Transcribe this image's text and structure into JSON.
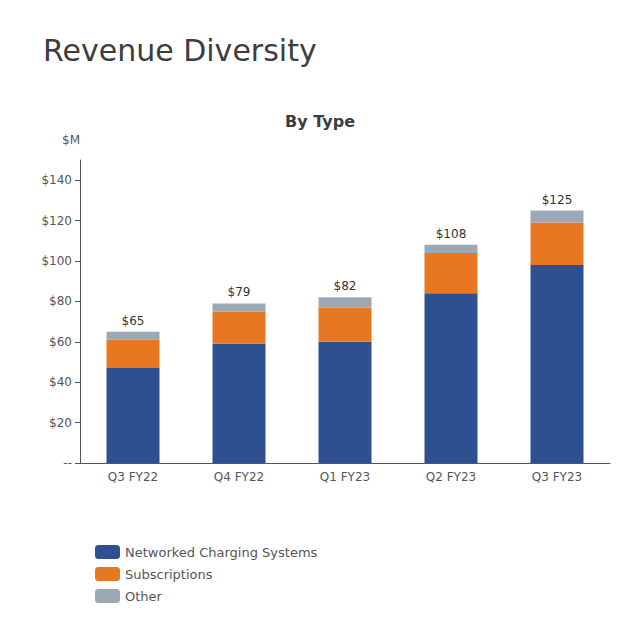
{
  "chart_data": {
    "type": "bar",
    "title": "Revenue Diversity",
    "subtitle": "By Type",
    "y_label": "$M",
    "categories": [
      "Q3 FY22",
      "Q4 FY22",
      "Q1 FY23",
      "Q2 FY23",
      "Q3 FY23"
    ],
    "series": [
      {
        "name": "Networked Charging Systems",
        "color": "#2E5090",
        "values": [
          47,
          59,
          60,
          84,
          98
        ]
      },
      {
        "name": "Subscriptions",
        "color": "#E87722",
        "values": [
          14,
          16,
          17,
          20,
          21
        ]
      },
      {
        "name": "Other",
        "color": "#9BA8B5",
        "values": [
          4,
          4,
          5,
          4,
          6
        ]
      }
    ],
    "totals": [
      65,
      79,
      82,
      108,
      125
    ],
    "total_labels": [
      "$65",
      "$79",
      "$82",
      "$108",
      "$125"
    ],
    "stacked": true,
    "ylim": [
      0,
      150
    ],
    "yticks": [
      {
        "value": 0,
        "label": "--"
      },
      {
        "value": 20,
        "label": "$20"
      },
      {
        "value": 40,
        "label": "$40"
      },
      {
        "value": 60,
        "label": "$60"
      },
      {
        "value": 80,
        "label": "$80"
      },
      {
        "value": 100,
        "label": "$100"
      },
      {
        "value": 120,
        "label": "$120"
      },
      {
        "value": 140,
        "label": "$140"
      }
    ],
    "grid": false,
    "legend": "lower left"
  }
}
